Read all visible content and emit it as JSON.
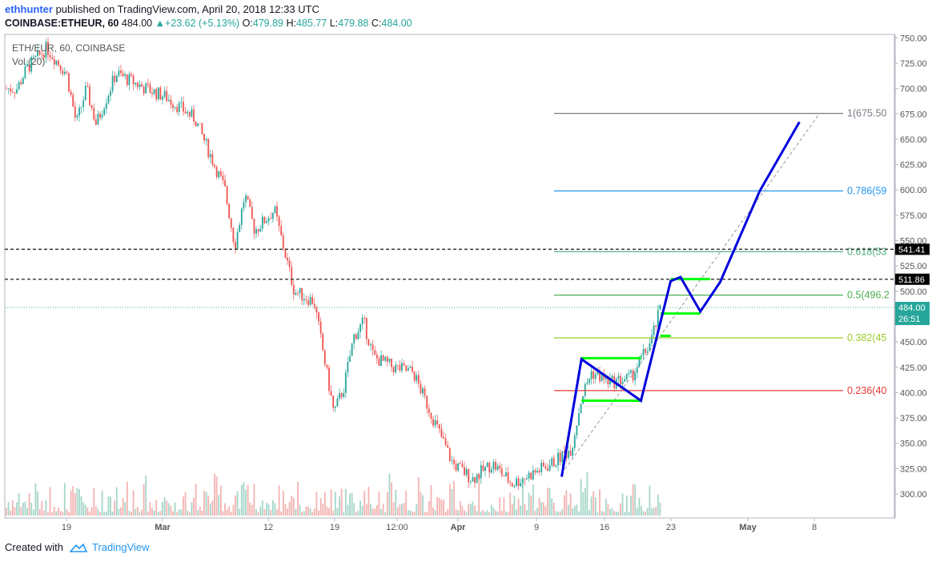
{
  "header": {
    "username": "ethhunter",
    "published_text": "published on TradingView.com, April 20, 2018 12:33 UTC",
    "symbol": "COINBASE:ETHEUR, 60",
    "last": "484.00",
    "change": "+23.62 (+5.13%)",
    "o_label": "O:",
    "o_value": "479.89",
    "h_label": "H:",
    "h_value": "485.77",
    "l_label": "L:",
    "l_value": "479.88",
    "c_label": "C:",
    "c_value": "484.00"
  },
  "legend": {
    "series": "ETH/EUR, 60, COINBASE",
    "volume": "Vol (20)"
  },
  "footer": {
    "created_with": "Created with",
    "brand": "TradingView"
  },
  "colors": {
    "up": "#26a69a",
    "down": "#ef5350",
    "pattern": "#0000dd",
    "flag": "#00ff00",
    "last_price_label": "#26a69a"
  },
  "chart_data": {
    "type": "candlestick",
    "y_axis_ticks": [
      750,
      725,
      700,
      675,
      650,
      625,
      600,
      575,
      550,
      525,
      500,
      475,
      450,
      425,
      400,
      375,
      350,
      325,
      300
    ],
    "ylim": [
      285,
      753
    ],
    "x_tick_labels": [
      "19",
      "Mar",
      "12",
      "19",
      "12:00",
      "Apr",
      "9",
      "16",
      "23",
      "May",
      "8"
    ],
    "price_anchors": [
      {
        "date": "2018-02-14",
        "close": 700
      },
      {
        "date": "2018-02-15",
        "close": 720
      },
      {
        "date": "2018-02-17",
        "close": 740
      },
      {
        "date": "2018-02-19",
        "close": 715
      },
      {
        "date": "2018-02-20",
        "close": 665
      },
      {
        "date": "2018-02-21",
        "close": 700
      },
      {
        "date": "2018-02-22",
        "close": 665
      },
      {
        "date": "2018-02-24",
        "close": 715
      },
      {
        "date": "2018-02-27",
        "close": 700
      },
      {
        "date": "2018-03-01",
        "close": 692
      },
      {
        "date": "2018-03-04",
        "close": 670
      },
      {
        "date": "2018-03-07",
        "close": 600
      },
      {
        "date": "2018-03-08",
        "close": 545
      },
      {
        "date": "2018-03-09",
        "close": 595
      },
      {
        "date": "2018-03-10",
        "close": 560
      },
      {
        "date": "2018-03-12",
        "close": 580
      },
      {
        "date": "2018-03-14",
        "close": 500
      },
      {
        "date": "2018-03-16",
        "close": 490
      },
      {
        "date": "2018-03-18",
        "close": 380
      },
      {
        "date": "2018-03-19",
        "close": 405
      },
      {
        "date": "2018-03-20",
        "close": 455
      },
      {
        "date": "2018-03-21",
        "close": 470
      },
      {
        "date": "2018-03-22",
        "close": 435
      },
      {
        "date": "2018-03-24",
        "close": 425
      },
      {
        "date": "2018-03-26",
        "close": 420
      },
      {
        "date": "2018-03-28",
        "close": 375
      },
      {
        "date": "2018-03-30",
        "close": 330
      },
      {
        "date": "2018-04-01",
        "close": 315
      },
      {
        "date": "2018-04-03",
        "close": 330
      },
      {
        "date": "2018-04-05",
        "close": 310
      },
      {
        "date": "2018-04-07",
        "close": 320
      },
      {
        "date": "2018-04-09",
        "close": 330
      },
      {
        "date": "2018-04-11",
        "close": 345
      },
      {
        "date": "2018-04-12",
        "close": 395
      },
      {
        "date": "2018-04-13",
        "close": 420
      },
      {
        "date": "2018-04-15",
        "close": 410
      },
      {
        "date": "2018-04-17",
        "close": 415
      },
      {
        "date": "2018-04-19",
        "close": 450
      },
      {
        "date": "2018-04-20",
        "close": 484
      }
    ],
    "fib_levels": [
      {
        "ratio": 1,
        "label": "1(675.50",
        "price": 675.5,
        "color": "#787b86"
      },
      {
        "ratio": 0.786,
        "label": "0.786(59",
        "price": 599,
        "color": "#2196f3"
      },
      {
        "ratio": 0.618,
        "label": "0.618(53",
        "price": 539,
        "color": "#4caf80"
      },
      {
        "ratio": 0.5,
        "label": "0.5(496.2",
        "price": 496.2,
        "color": "#4caf50"
      },
      {
        "ratio": 0.382,
        "label": "0.382(45",
        "price": 454,
        "color": "#9ccc2a"
      },
      {
        "ratio": 0.236,
        "label": "0.236(40",
        "price": 402,
        "color": "#e53935"
      }
    ],
    "horizontal_lines": [
      {
        "price": 541.41,
        "label": "541.41",
        "style": "dashed"
      },
      {
        "price": 511.86,
        "label": "511.86",
        "style": "dashed"
      }
    ],
    "last_price": {
      "price": 484.0,
      "label": "484.00",
      "countdown": "26:51"
    },
    "projection_path": [
      {
        "date": "2018-04-10",
        "price": 317
      },
      {
        "date": "2018-04-12",
        "price": 433
      },
      {
        "date": "2018-04-18",
        "price": 392
      },
      {
        "date": "2018-04-21",
        "price": 510
      },
      {
        "date": "2018-04-22",
        "price": 514
      },
      {
        "date": "2018-04-24",
        "price": 480
      },
      {
        "date": "2018-04-26",
        "price": 509
      },
      {
        "date": "2018-04-30",
        "price": 599
      },
      {
        "date": "2018-05-04",
        "price": 667
      }
    ],
    "trendline": [
      {
        "date": "2018-04-10",
        "price": 320
      },
      {
        "date": "2018-05-06",
        "price": 675
      }
    ],
    "flag_lines": [
      {
        "from_date": "2018-04-12",
        "to_date": "2018-04-18",
        "price": 434
      },
      {
        "from_date": "2018-04-12",
        "to_date": "2018-04-18",
        "price": 392
      },
      {
        "from_date": "2018-04-20",
        "to_date": "2018-04-21",
        "price": 456
      },
      {
        "from_date": "2018-04-21",
        "to_date": "2018-04-25",
        "price": 512
      },
      {
        "from_date": "2018-04-20",
        "to_date": "2018-04-24",
        "price": 478
      }
    ]
  }
}
